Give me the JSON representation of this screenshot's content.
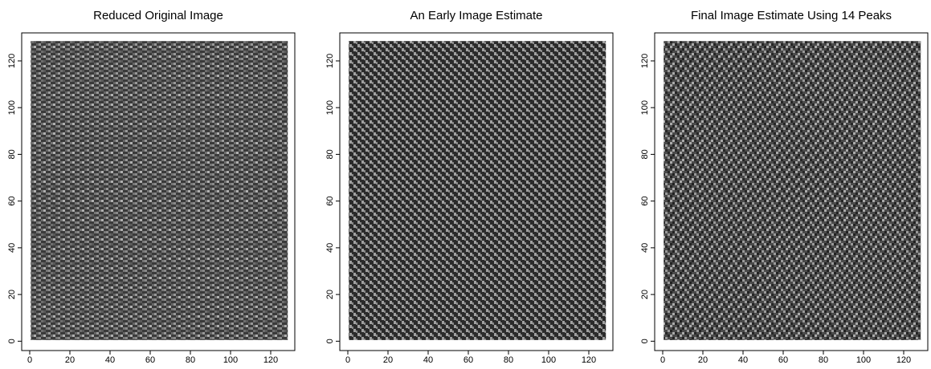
{
  "chart_data": [
    {
      "type": "image",
      "title": "Reduced Original Image",
      "xlim": [
        -4,
        132
      ],
      "ylim": [
        -4,
        132
      ],
      "xticks": [
        0,
        20,
        40,
        60,
        80,
        100,
        120
      ],
      "yticks": [
        0,
        20,
        40,
        60,
        80,
        100,
        120
      ]
    },
    {
      "type": "image",
      "title": "An Early Image Estimate",
      "xlim": [
        -4,
        132
      ],
      "ylim": [
        -4,
        132
      ],
      "xticks": [
        0,
        20,
        40,
        60,
        80,
        100,
        120
      ],
      "yticks": [
        0,
        20,
        40,
        60,
        80,
        100,
        120
      ]
    },
    {
      "type": "image",
      "title": "Final Image Estimate Using 14 Peaks",
      "xlim": [
        -4,
        132
      ],
      "ylim": [
        -4,
        132
      ],
      "xticks": [
        0,
        20,
        40,
        60,
        80,
        100,
        120
      ],
      "yticks": [
        0,
        20,
        40,
        60,
        80,
        100,
        120
      ]
    }
  ]
}
